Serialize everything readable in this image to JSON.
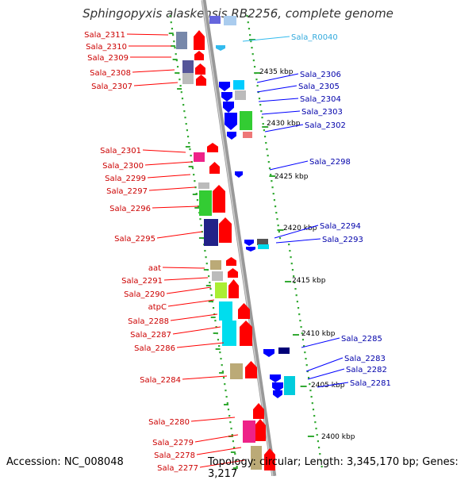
{
  "title": "Sphingopyxis alaskensis RB2256, complete genome",
  "accession": "Accession: NC_008048",
  "topology": "Topology: circular; Length: 3,345,170 bp; Genes: 3,217",
  "scale_marks": [
    "2435 kbp",
    "2430 kbp",
    "2425 kbp",
    "2420 kbp",
    "2415 kbp",
    "2410 kbp",
    "2405 kbp",
    "2400 kbp"
  ],
  "left_labels": [
    "Sala_2311",
    "Sala_2310",
    "Sala_2309",
    "Sala_2308",
    "Sala_2307",
    "Sala_2301",
    "Sala_2300",
    "Sala_2299",
    "Sala_2297",
    "Sala_2296",
    "Sala_2295",
    "aat",
    "Sala_2291",
    "Sala_2290",
    "atpC",
    "Sala_2288",
    "Sala_2287",
    "Sala_2286",
    "Sala_2284",
    "Sala_2280",
    "Sala_2279",
    "Sala_2278",
    "Sala_2277"
  ],
  "right_labels": [
    "Sala_R0040",
    "Sala_2306",
    "Sala_2305",
    "Sala_2304",
    "Sala_2303",
    "Sala_2302",
    "Sala_2298",
    "Sala_2294",
    "Sala_2293",
    "Sala_2285",
    "Sala_2283",
    "Sala_2282",
    "Sala_2281"
  ],
  "colors": {
    "forward": "#ff0000",
    "reverse": "#0000ff",
    "rna": "#33bbee",
    "backbone": "#999999",
    "dots": "#33aa33"
  }
}
